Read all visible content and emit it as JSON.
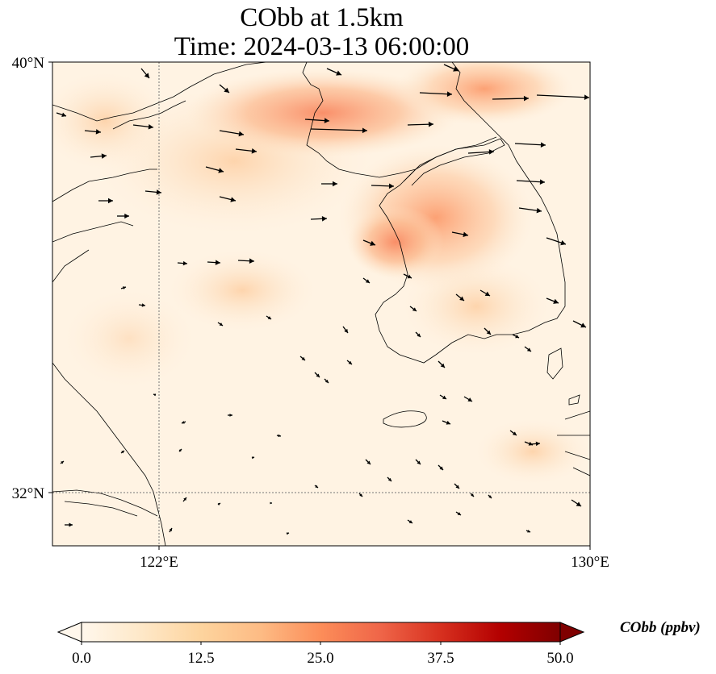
{
  "figure": {
    "title_line1": "CObb at 1.5km",
    "title_line2": "Time: 2024-03-13 06:00:00"
  },
  "map": {
    "lat_ticks": [
      "40°N",
      "32°N"
    ],
    "lon_ticks": [
      "122°E",
      "130°E"
    ],
    "extent": {
      "lon_min": 120,
      "lon_max": 130,
      "lat_min": 31,
      "lat_max": 40
    },
    "gridlines": "dotted at 122°E and 32°N",
    "field": "CObb concentration",
    "overlay": "wind vectors"
  },
  "colorbar": {
    "label": "CObb (ppbv)",
    "ticks": [
      "0.0",
      "12.5",
      "25.0",
      "37.5",
      "50.0"
    ],
    "min": 0,
    "max": 50,
    "colormap": "OrRd",
    "colors": [
      "#fff7ec",
      "#fee8c8",
      "#fdd49e",
      "#fdbb84",
      "#fc8d59",
      "#ef6548",
      "#d7301f",
      "#b30000",
      "#7f0000"
    ],
    "extend": "both"
  }
}
